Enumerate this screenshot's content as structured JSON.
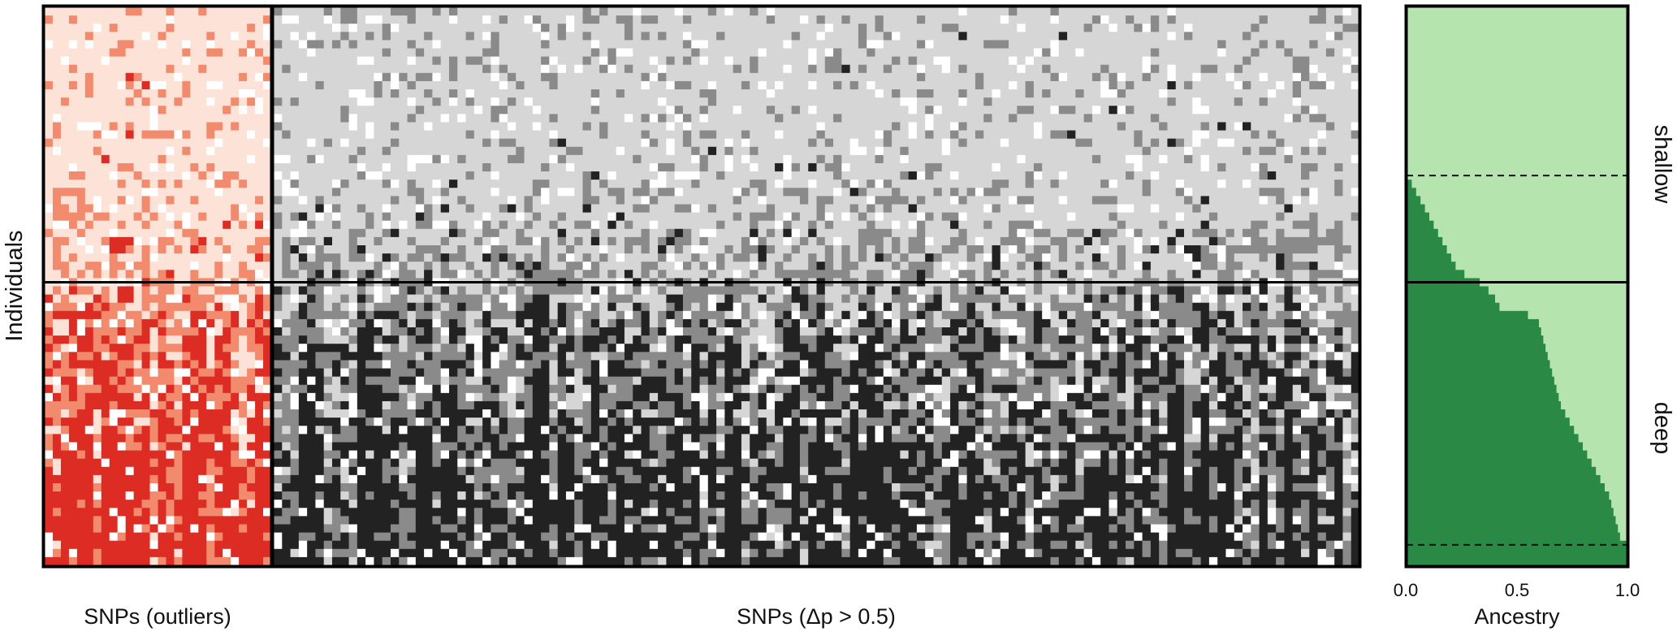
{
  "chart_data": [
    {
      "type": "heatmap",
      "panel": "outlier-snps",
      "xlabel": "SNPs (outliers)",
      "ylabel": "Individuals",
      "n_individuals": 68,
      "n_snps": 28,
      "groups": [
        "shallow",
        "deep"
      ],
      "shallow_count": 34,
      "deep_count": 34,
      "genotype_colors": {
        "shallow_homozygote": "#fde3d7",
        "heterozygote": "#f28a6e",
        "deep_homozygote": "#dc2c23",
        "missing": "#ffffff"
      }
    },
    {
      "type": "heatmap",
      "panel": "high-delta-p-snps",
      "xlabel": "SNPs (Δp > 0.5)",
      "n_individuals": 68,
      "n_snps": 130,
      "groups": [
        "shallow",
        "deep"
      ],
      "shallow_count": 34,
      "deep_count": 34,
      "genotype_colors": {
        "shallow_homozygote": "#d6d6d6",
        "heterozygote": "#8a8a8a",
        "deep_homozygote": "#222222",
        "missing": "#ffffff"
      }
    },
    {
      "type": "area",
      "panel": "ancestry",
      "xlabel": "Ancestry",
      "x_ticks": [
        "0.0",
        "0.5",
        "1.0"
      ],
      "xlim": [
        0,
        1
      ],
      "group_labels": [
        "shallow",
        "deep"
      ],
      "colors": {
        "deep_ancestry": "#2a8a45",
        "shallow_ancestry": "#b5e4ae"
      },
      "dashed_lines_at_individual": [
        20.5,
        65.5
      ],
      "deep_ancestry_by_individual": [
        0.0,
        0.0,
        0.0,
        0.0,
        0.0,
        0.0,
        0.0,
        0.0,
        0.0,
        0.0,
        0.0,
        0.0,
        0.0,
        0.0,
        0.0,
        0.0,
        0.0,
        0.0,
        0.0,
        0.0,
        0.0,
        0.02,
        0.04,
        0.06,
        0.08,
        0.1,
        0.12,
        0.14,
        0.16,
        0.18,
        0.2,
        0.22,
        0.26,
        0.33,
        0.37,
        0.4,
        0.42,
        0.55,
        0.6,
        0.61,
        0.62,
        0.63,
        0.64,
        0.65,
        0.66,
        0.67,
        0.68,
        0.69,
        0.7,
        0.72,
        0.74,
        0.76,
        0.78,
        0.8,
        0.82,
        0.84,
        0.86,
        0.88,
        0.9,
        0.92,
        0.93,
        0.94,
        0.95,
        0.96,
        0.97,
        1.0,
        1.0,
        1.0
      ]
    }
  ]
}
